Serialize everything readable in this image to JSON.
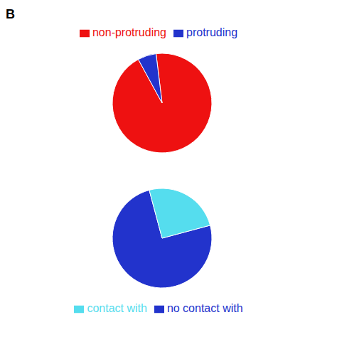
{
  "chart_data": [
    {
      "type": "pie",
      "title": "B",
      "categories": [
        "non-protruding",
        "protruding"
      ],
      "values": [
        94,
        6
      ],
      "colors": [
        "#ee1111",
        "#2233cc"
      ],
      "legend": "top"
    },
    {
      "type": "pie",
      "categories": [
        "no contact with",
        "contact with"
      ],
      "values": [
        75,
        25
      ],
      "colors": [
        "#2233cc",
        "#55ddee"
      ],
      "legend": "bottom"
    }
  ]
}
